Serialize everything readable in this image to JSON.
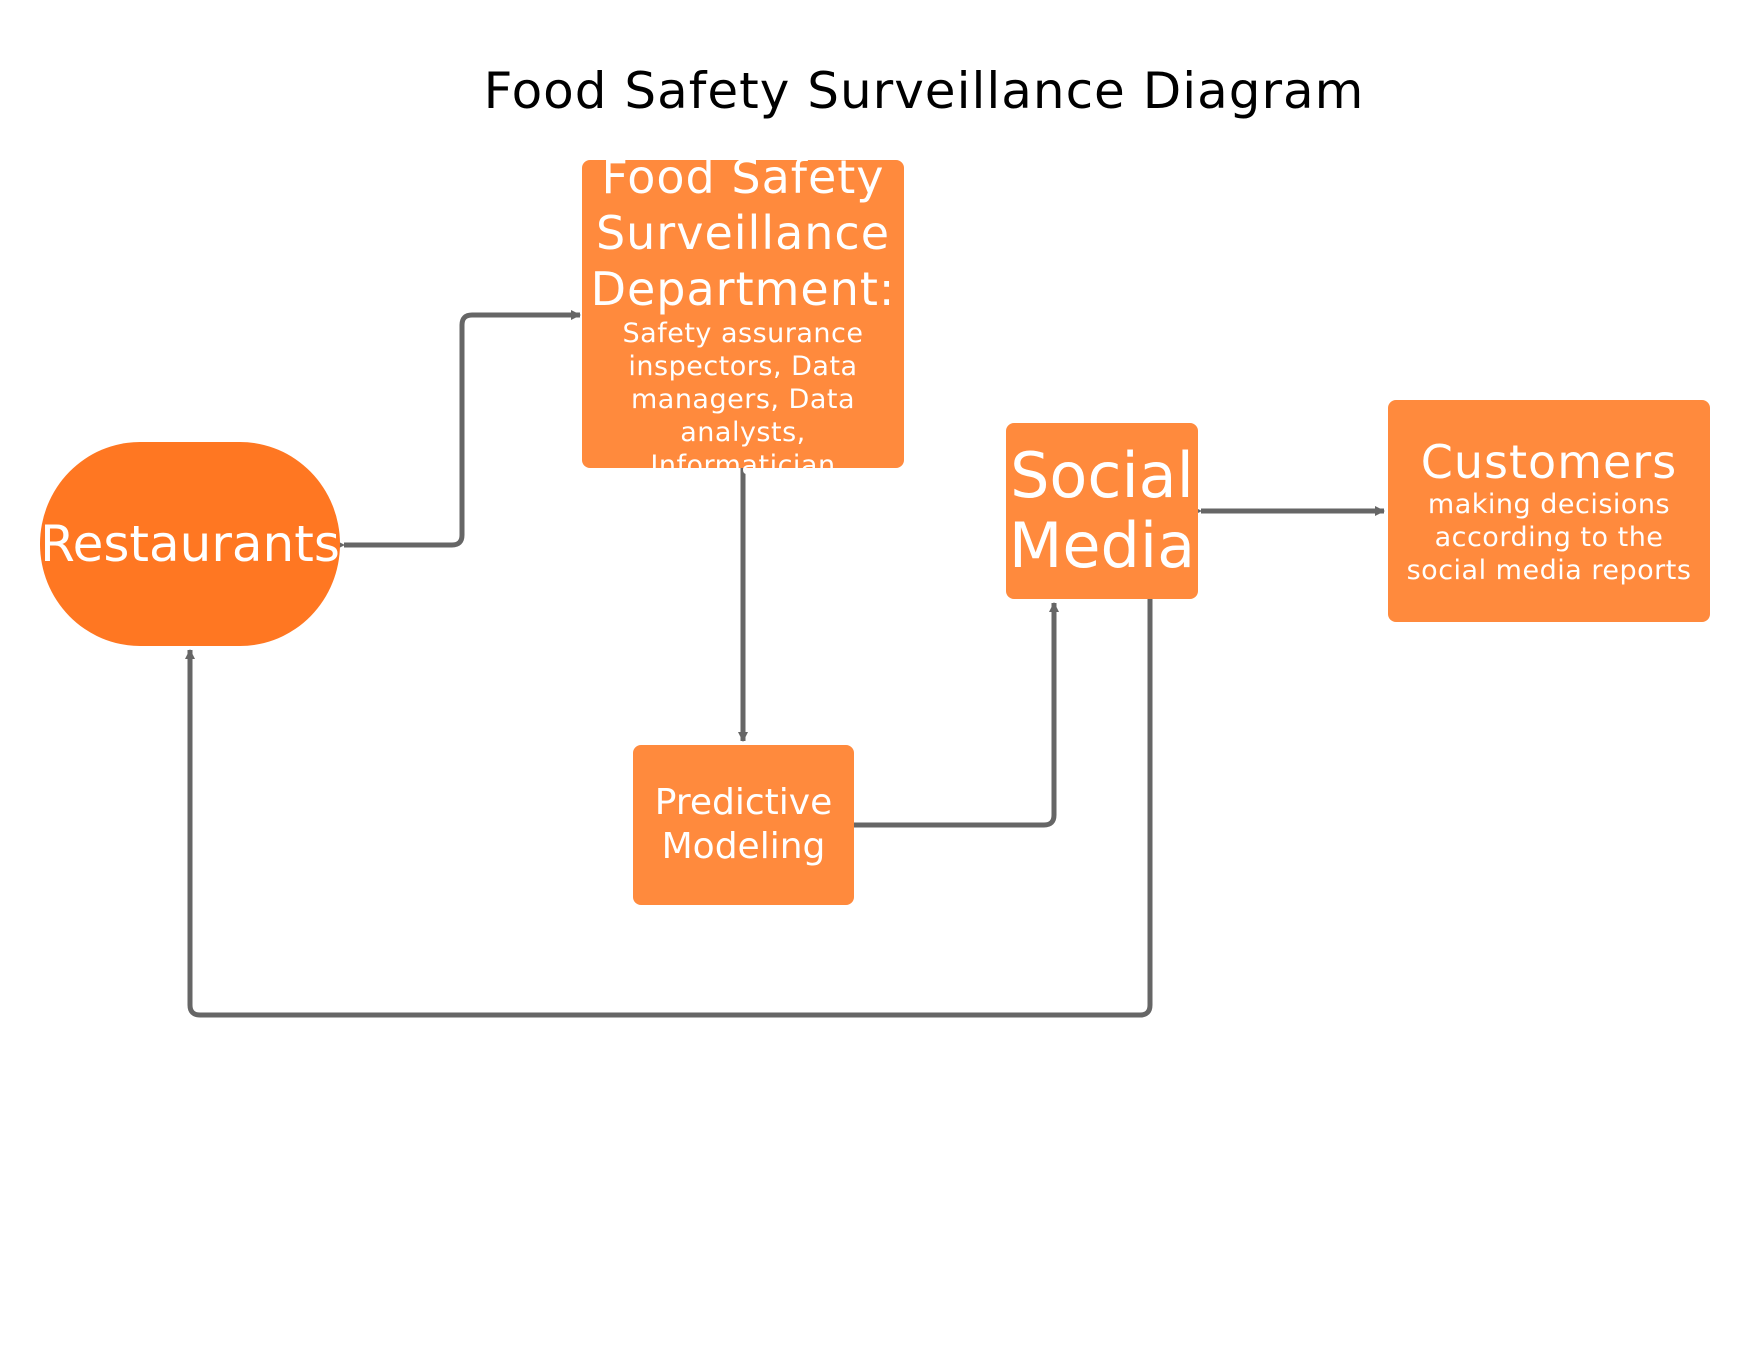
{
  "title": "Food Safety Surveillance Diagram",
  "nodes": {
    "restaurants": {
      "label": "Restaurants"
    },
    "department": {
      "heading": "Food Safety Surveillance Department:",
      "detail": "Safety assurance inspectors, Data managers, Data analysts, Informatician"
    },
    "predictive": {
      "label": "Predictive Modeling"
    },
    "social": {
      "label": "Social Media"
    },
    "customers": {
      "heading": "Customers",
      "detail": "making decisions according to the social media reports"
    }
  },
  "colors": {
    "node_fill": "#ff8a3d",
    "restaurants_fill": "#ff7722",
    "connector": "#666666",
    "text": "#ffffff"
  }
}
